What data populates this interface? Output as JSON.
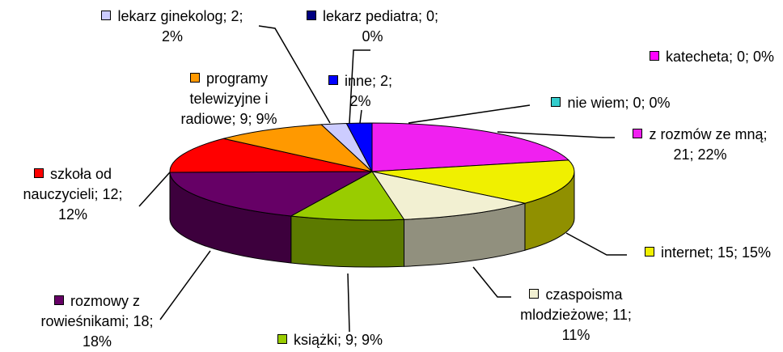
{
  "chart_data": {
    "type": "pie3d",
    "categories": [
      "z rozmów ze mną",
      "internet",
      "czaspoisma mlodzieżowe",
      "książki",
      "rozmowy z rowieśnikami",
      "szkoła od nauczycieli",
      "programy telewizyjne i radiowe",
      "lekarz ginekolog",
      "lekarz pediatra",
      "inne",
      "nie wiem",
      "katecheta"
    ],
    "values": [
      21,
      15,
      11,
      9,
      18,
      12,
      9,
      2,
      0,
      2,
      0,
      0
    ],
    "value_labels": [
      "z rozmów ze mną; 21; 22%",
      "internet; 15; 15%",
      "czaspoisma mlodzieżowe; 11; 11%",
      "książki; 9; 9%",
      "rozmowy z rowieśnikami; 18; 18%",
      "szkoła od nauczycieli; 12; 12%",
      "programy telewizyjne i radiowe; 9; 9%",
      "lekarz ginekolog; 2; 2%",
      "lekarz pediatra; 0; 0%",
      "inne; 2; 2%",
      "nie wiem; 0; 0%",
      "katecheta; 0; 0%"
    ],
    "colors": [
      "#f020f0",
      "#f0f000",
      "#f2f0d2",
      "#99cc00",
      "#660066",
      "#ff0000",
      "#ff9900",
      "#ccccff",
      "#000080",
      "#0000ff",
      "#33cccc",
      "#ff00ff"
    ]
  }
}
